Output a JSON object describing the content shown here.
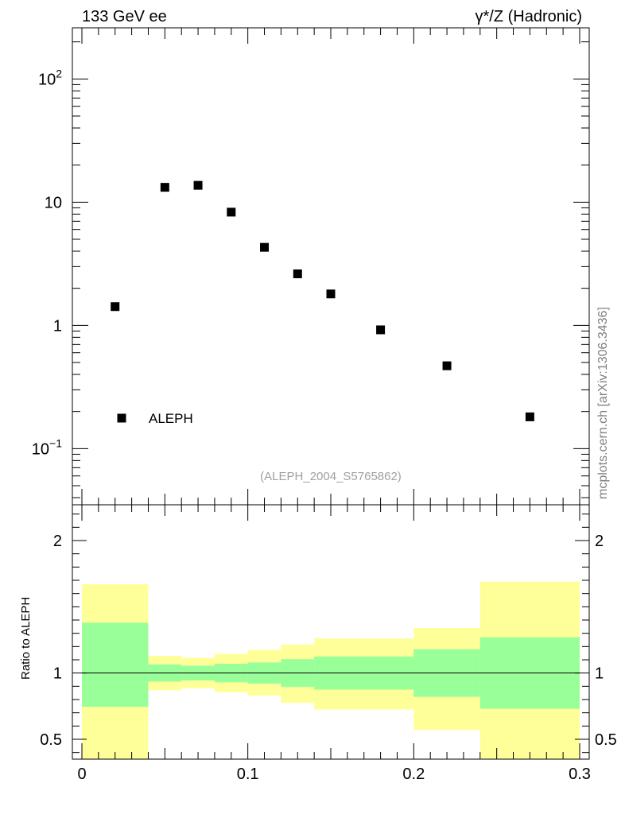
{
  "header": {
    "left": "133 GeV ee",
    "right": "γ*/Z (Hadronic)"
  },
  "side_label": "mcplots.cern.ch [arXiv:1306.3436]",
  "analysis_label": "(ALEPH_2004_S5765862)",
  "colors": {
    "band_inner": "#99ff99",
    "band_outer": "#ffff99",
    "marker": "#000000",
    "analysis_label": "#a0a0a0"
  },
  "chart_data": [
    {
      "type": "scatter",
      "panel": "main",
      "y_scale": "log",
      "xlim": [
        -0.005,
        0.3
      ],
      "ylim": [
        0.035,
        260
      ],
      "y_tick_labels": [
        {
          "value": 0.1,
          "base": "10",
          "exp": "−1"
        },
        {
          "value": 1,
          "base": "1",
          "exp": ""
        },
        {
          "value": 10,
          "base": "10",
          "exp": ""
        },
        {
          "value": 100,
          "base": "10",
          "exp": "2"
        }
      ],
      "series": [
        {
          "name": "ALEPH",
          "marker": "square",
          "x": [
            0.02,
            0.05,
            0.07,
            0.09,
            0.11,
            0.13,
            0.15,
            0.18,
            0.22,
            0.27
          ],
          "y": [
            1.42,
            13.2,
            13.7,
            8.3,
            4.3,
            2.62,
            1.8,
            0.92,
            0.47,
            0.181
          ]
        }
      ],
      "legend": {
        "position": "bottom-left",
        "entries": [
          "ALEPH"
        ]
      }
    },
    {
      "type": "area",
      "panel": "ratio",
      "ylabel": "Ratio to ALEPH",
      "xlim": [
        -0.005,
        0.3
      ],
      "ylim": [
        0.35,
        2.27
      ],
      "x_tick_labels": [
        "0",
        "0.1",
        "0.2",
        "0.3"
      ],
      "x_ticks": [
        0,
        0.1,
        0.2,
        0.3
      ],
      "y_tick_labels": [
        "0.5",
        "1",
        "2"
      ],
      "y_ticks": [
        0.5,
        1,
        2
      ],
      "reference_line": 1,
      "bins": [
        {
          "lo": 0.0,
          "hi": 0.04,
          "inner": [
            0.745,
            1.38
          ],
          "outer": [
            0.0,
            1.67
          ]
        },
        {
          "lo": 0.04,
          "hi": 0.06,
          "inner": [
            0.935,
            1.065
          ],
          "outer": [
            0.87,
            1.13
          ]
        },
        {
          "lo": 0.06,
          "hi": 0.08,
          "inner": [
            0.945,
            1.055
          ],
          "outer": [
            0.885,
            1.115
          ]
        },
        {
          "lo": 0.08,
          "hi": 0.1,
          "inner": [
            0.93,
            1.07
          ],
          "outer": [
            0.855,
            1.145
          ]
        },
        {
          "lo": 0.1,
          "hi": 0.12,
          "inner": [
            0.92,
            1.08
          ],
          "outer": [
            0.83,
            1.175
          ]
        },
        {
          "lo": 0.12,
          "hi": 0.14,
          "inner": [
            0.895,
            1.105
          ],
          "outer": [
            0.775,
            1.215
          ]
        },
        {
          "lo": 0.14,
          "hi": 0.2,
          "inner": [
            0.875,
            1.125
          ],
          "outer": [
            0.725,
            1.26
          ]
        },
        {
          "lo": 0.2,
          "hi": 0.24,
          "inner": [
            0.82,
            1.18
          ],
          "outer": [
            0.57,
            1.34
          ]
        },
        {
          "lo": 0.24,
          "hi": 0.3,
          "inner": [
            0.73,
            1.27
          ],
          "outer": [
            0.0,
            1.69
          ]
        }
      ]
    }
  ]
}
